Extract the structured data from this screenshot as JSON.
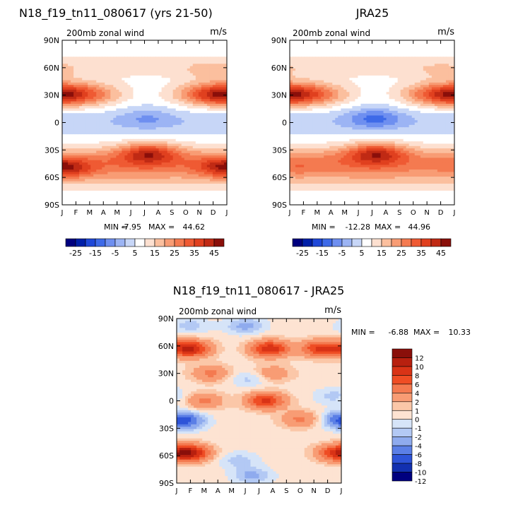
{
  "chart_data": [
    {
      "type": "heatmap",
      "title": "N18_f19_tn11_080617 (yrs 21-50)",
      "left_label": "200mb zonal wind",
      "units": "m/s",
      "x_ticks": [
        "J",
        "F",
        "M",
        "A",
        "M",
        "J",
        "J",
        "A",
        "S",
        "O",
        "N",
        "D",
        "J"
      ],
      "y_ticks": [
        "90N",
        "60N",
        "30N",
        "0",
        "30S",
        "60S",
        "90S"
      ],
      "ylim": [
        -90,
        90
      ],
      "stats": {
        "min_label": "MIN =",
        "min": "-7.95",
        "max_label": "MAX =",
        "max": "44.62"
      },
      "colorbar_labels": [
        "-25",
        "-15",
        "-5",
        "5",
        "15",
        "25",
        "35",
        "45"
      ],
      "features": [
        {
          "lat": 30,
          "month": 1.2,
          "value": 44
        },
        {
          "lat": 30,
          "month": 12.0,
          "value": 40
        },
        {
          "lat": -33,
          "month": 7.3,
          "value": 44
        },
        {
          "lat": -50,
          "month": 1.5,
          "value": 38
        },
        {
          "lat": -48,
          "month": 12.5,
          "value": 35
        },
        {
          "lat": 5,
          "month": 7.2,
          "value": -6
        },
        {
          "lat": 55,
          "month": 12.0,
          "value": 18
        },
        {
          "lat": -85,
          "month": 7.0,
          "value": 8
        }
      ]
    },
    {
      "type": "heatmap",
      "title": "JRA25",
      "left_label": "200mb zonal wind",
      "units": "m/s",
      "x_ticks": [
        "J",
        "F",
        "M",
        "A",
        "M",
        "J",
        "J",
        "A",
        "S",
        "O",
        "N",
        "D",
        "J"
      ],
      "y_ticks": [
        "90N",
        "60N",
        "30N",
        "0",
        "30S",
        "60S",
        "90S"
      ],
      "ylim": [
        -90,
        90
      ],
      "stats": {
        "min_label": "MIN =",
        "min": "-12.28",
        "max_label": "MAX =",
        "max": "44.96"
      },
      "colorbar_labels": [
        "-25",
        "-15",
        "-5",
        "5",
        "15",
        "25",
        "35",
        "45"
      ],
      "features": [
        {
          "lat": 30,
          "month": 1.2,
          "value": 44
        },
        {
          "lat": 30,
          "month": 12.2,
          "value": 40
        },
        {
          "lat": -33,
          "month": 7.3,
          "value": 44
        },
        {
          "lat": -48,
          "month": 1.5,
          "value": 30
        },
        {
          "lat": 5,
          "month": 7.2,
          "value": -12
        },
        {
          "lat": 55,
          "month": 12.0,
          "value": 16
        }
      ]
    },
    {
      "type": "heatmap",
      "title": "N18_f19_tn11_080617 - JRA25",
      "left_label": "200mb zonal wind",
      "units": "m/s",
      "x_ticks": [
        "J",
        "F",
        "M",
        "A",
        "M",
        "J",
        "J",
        "A",
        "S",
        "O",
        "N",
        "D",
        "J"
      ],
      "y_ticks": [
        "90N",
        "60N",
        "30N",
        "0",
        "30S",
        "60S",
        "90S"
      ],
      "ylim": [
        -90,
        90
      ],
      "stats": {
        "min_label": "MIN =",
        "min": "-6.88",
        "max_label": "MAX =",
        "max": "10.33"
      },
      "colorbar_labels": [
        "12",
        "10",
        "8",
        "6",
        "4",
        "2",
        "1",
        "0",
        "-1",
        "-2",
        "-4",
        "-6",
        "-8",
        "-10",
        "-12"
      ],
      "features": [
        {
          "lat": 57,
          "month": 2.0,
          "value": 10
        },
        {
          "lat": 57,
          "month": 7.8,
          "value": 9
        },
        {
          "lat": 57,
          "month": 11.5,
          "value": 8
        },
        {
          "lat": -57,
          "month": 2.0,
          "value": 10
        },
        {
          "lat": -57,
          "month": 12.5,
          "value": 6
        },
        {
          "lat": 0,
          "month": 7.5,
          "value": 8
        },
        {
          "lat": 0,
          "month": 3.0,
          "value": 4
        },
        {
          "lat": 30,
          "month": 3.5,
          "value": 4
        },
        {
          "lat": 30,
          "month": 8.0,
          "value": 3
        },
        {
          "lat": -20,
          "month": 10.0,
          "value": 4
        },
        {
          "lat": -22,
          "month": 1.6,
          "value": -6
        },
        {
          "lat": -20,
          "month": 12.8,
          "value": -3
        },
        {
          "lat": 24,
          "month": 6.3,
          "value": -2
        },
        {
          "lat": 82,
          "month": 6.0,
          "value": -3
        },
        {
          "lat": 82,
          "month": 2.0,
          "value": -2
        },
        {
          "lat": -82,
          "month": 6.5,
          "value": -3
        },
        {
          "lat": -65,
          "month": 5.5,
          "value": -2
        },
        {
          "lat": 5,
          "month": 12.5,
          "value": -2
        }
      ]
    }
  ],
  "colormaps": {
    "full": [
      "#00007f",
      "#001fa8",
      "#1f48d8",
      "#3e6ae8",
      "#6e8ff0",
      "#9cb4f4",
      "#c7d6f7",
      "#ffffff",
      "#fde0d0",
      "#fbbf9e",
      "#f89c74",
      "#f47a50",
      "#ef5a33",
      "#e0401f",
      "#c02a14",
      "#8a0f0a"
    ],
    "diff": [
      "#8a0f0a",
      "#b8200f",
      "#d93316",
      "#ef4d24",
      "#f47a50",
      "#f89c74",
      "#fbc7a8",
      "#fde3d2",
      "#d6e4f8",
      "#b3c9f4",
      "#8fabee",
      "#5b7fe6",
      "#2e54d8",
      "#1230b0",
      "#00007f"
    ]
  }
}
